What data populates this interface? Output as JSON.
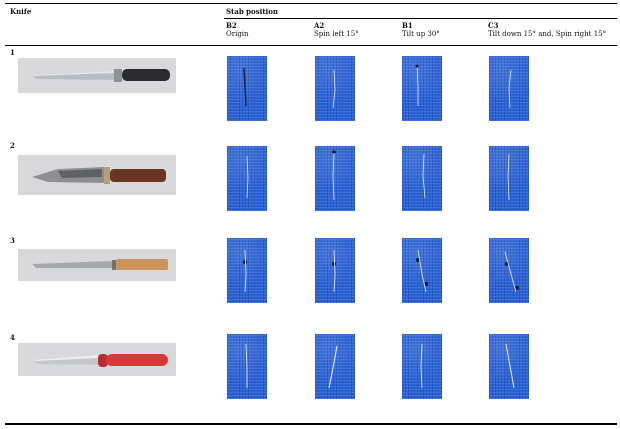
{
  "header": {
    "knife": "Knife",
    "stab_position": "Stab position"
  },
  "columns": [
    {
      "code": "B2",
      "label": "Origin"
    },
    {
      "code": "A2",
      "label": "Spin left 15°"
    },
    {
      "code": "B1",
      "label": "Tilt up 30°"
    },
    {
      "code": "C3",
      "label": "Tilt down 15° and, Spin right 15°"
    }
  ],
  "rows": [
    {
      "number": "1"
    },
    {
      "number": "2"
    },
    {
      "number": "3"
    },
    {
      "number": "4"
    }
  ],
  "colors": {
    "fabric": "#2a63d8",
    "knife1_handle": "#2b2b2d",
    "knife2_handle": "#6b3524",
    "knife3_handle": "#c9955a",
    "knife4_handle": "#d2383d"
  }
}
